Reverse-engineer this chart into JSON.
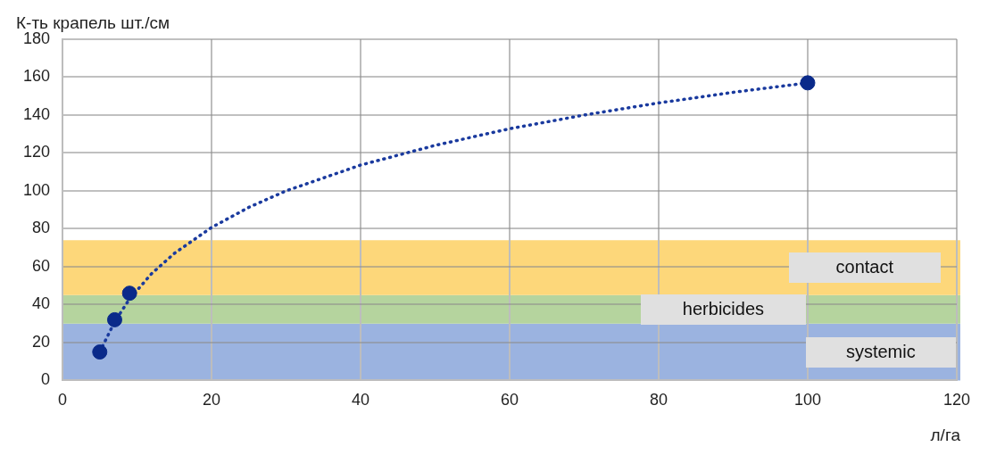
{
  "chart_data": {
    "type": "scatter",
    "xlabel": "л/га",
    "ylabel": "К-ть крапель шт./см",
    "xlim": [
      0,
      120
    ],
    "xticks": [
      0,
      20,
      40,
      60,
      80,
      100,
      120
    ],
    "ylim": [
      0,
      180
    ],
    "yticks": [
      0,
      20,
      40,
      60,
      80,
      100,
      120,
      140,
      160,
      180
    ],
    "grid": true,
    "legend": false,
    "series": [
      {
        "type": "scatter",
        "color": "#0a2a8a",
        "marker": "circle",
        "x": [
          5,
          7,
          9,
          100
        ],
        "values": [
          15,
          32,
          46,
          157
        ]
      },
      {
        "type": "line",
        "color": "#1a3a9e",
        "marker": "none",
        "line_style": "dotted",
        "x": [
          5,
          7,
          9,
          12,
          15,
          20,
          25,
          30,
          40,
          50,
          60,
          70,
          80,
          90,
          100
        ],
        "values": [
          15,
          31,
          43,
          56.5,
          67,
          80.7,
          91.3,
          100,
          113.6,
          124,
          132.8,
          140,
          146.4,
          152,
          157
        ]
      }
    ],
    "bands": [
      {
        "axis": "y",
        "from": 0,
        "to": 30,
        "label": "systemic",
        "color": "#9bb3e0"
      },
      {
        "axis": "y",
        "from": 30,
        "to": 45,
        "label": "herbicides",
        "color": "#b5d49e"
      },
      {
        "axis": "y",
        "from": 45,
        "to": 74,
        "label": "contact",
        "color": "#fdd77a"
      }
    ]
  }
}
